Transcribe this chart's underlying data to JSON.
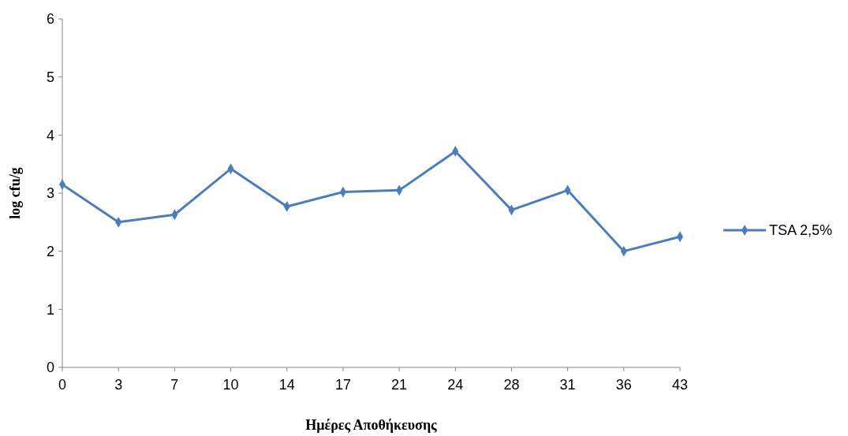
{
  "chart_data": {
    "type": "line",
    "xlabel": "Ημέρες Αποθήκευσης",
    "ylabel": "log cfu/g",
    "categories": [
      "0",
      "3",
      "7",
      "10",
      "14",
      "17",
      "21",
      "24",
      "28",
      "31",
      "36",
      "43"
    ],
    "series": [
      {
        "name": "TSA 2,5%",
        "color": "#4a7ebb",
        "values": [
          3.15,
          2.5,
          2.63,
          3.42,
          2.77,
          3.02,
          3.05,
          3.72,
          2.71,
          3.05,
          2.0,
          2.25
        ]
      }
    ],
    "ylim": [
      0,
      6
    ],
    "yticks": [
      0,
      1,
      2,
      3,
      4,
      5,
      6
    ],
    "grid": false,
    "legend": "right",
    "marker": "diamond",
    "line_style": "solid"
  }
}
